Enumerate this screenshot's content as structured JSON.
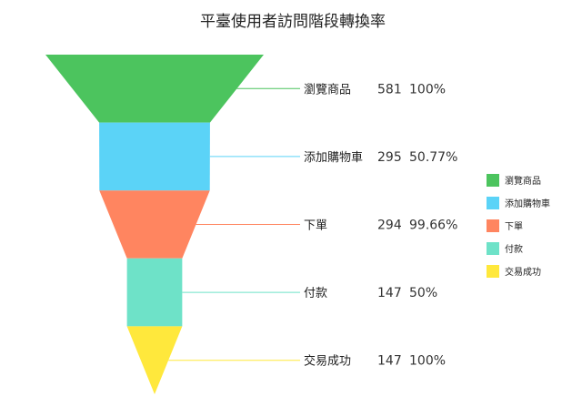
{
  "chart_data": {
    "type": "funnel",
    "title": "平臺使用者訪問階段轉換率",
    "categories": [
      "瀏覽商品",
      "添加購物車",
      "下單",
      "付款",
      "交易成功"
    ],
    "values": [
      581,
      295,
      294,
      147,
      147
    ],
    "rates": [
      "100%",
      "50.77%",
      "99.66%",
      "50%",
      "100%"
    ],
    "colors": [
      "#4cc45e",
      "#5bd3f7",
      "#ff8560",
      "#6ee2c8",
      "#ffe83c"
    ],
    "legend": {
      "position": "right",
      "items": [
        "瀏覽商品",
        "添加購物車",
        "下單",
        "付款",
        "交易成功"
      ]
    }
  }
}
